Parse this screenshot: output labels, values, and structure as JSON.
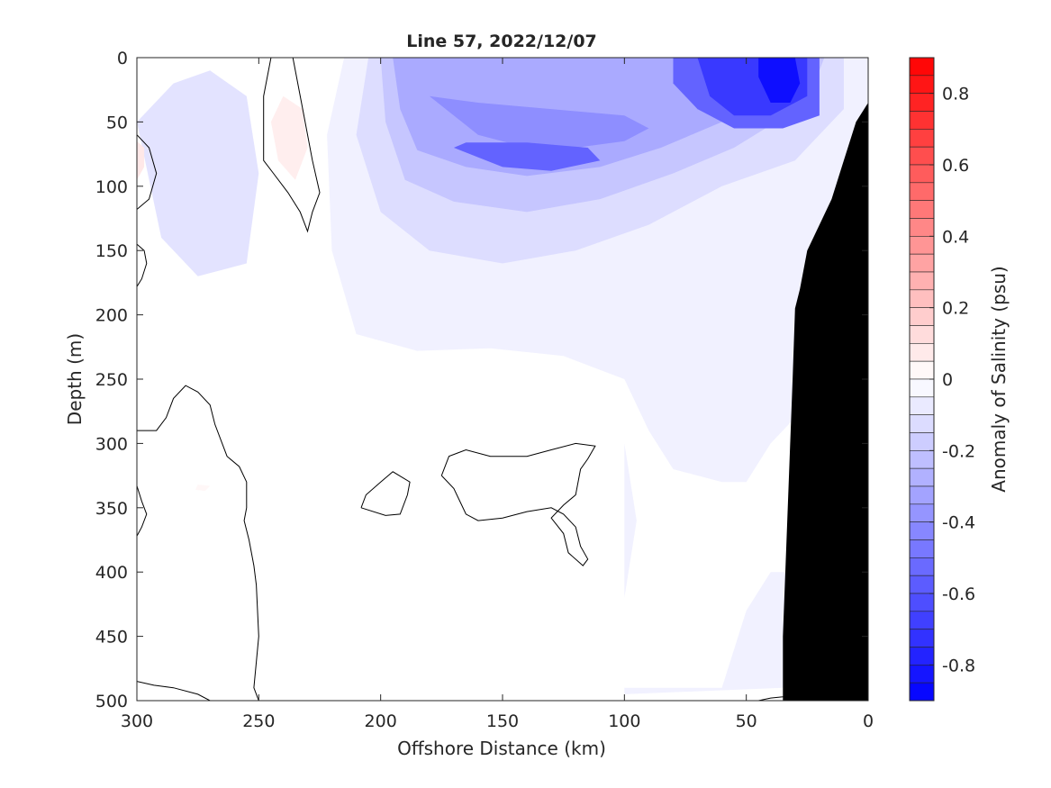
{
  "chart_data": {
    "type": "heatmap",
    "title": "Line 57, 2022/12/07",
    "xlabel": "Offshore Distance (km)",
    "ylabel": "Depth (m)",
    "xlim": [
      300,
      0
    ],
    "ylim": [
      0,
      500
    ],
    "x_ticks": [
      300,
      250,
      200,
      150,
      100,
      50,
      0
    ],
    "x_tick_labels": [
      "300",
      "250",
      "200",
      "150",
      "100",
      "50",
      "0"
    ],
    "y_ticks": [
      0,
      50,
      100,
      150,
      200,
      250,
      300,
      350,
      400,
      450,
      500
    ],
    "y_tick_labels": [
      "0",
      "50",
      "100",
      "150",
      "200",
      "250",
      "300",
      "350",
      "400",
      "450",
      "500"
    ],
    "grid": false,
    "colorbar": {
      "label": "Anomaly of Salinity (psu)",
      "range": [
        -0.9,
        0.9
      ],
      "levels": 36,
      "ticks": [
        0.8,
        0.6,
        0.4,
        0.2,
        0,
        -0.2,
        -0.4,
        -0.6,
        -0.8
      ],
      "tick_labels": [
        "0.8",
        "0.6",
        "0.4",
        "0.2",
        "0",
        "-0.2",
        "-0.4",
        "-0.6",
        "-0.8"
      ],
      "colormap": "blue-white-red",
      "neg_color": "#0000ff",
      "pos_color": "#ff0000",
      "mid_color": "#ffffff"
    },
    "bathymetry_color": "#000000",
    "regions": [
      {
        "name": "r1",
        "value": -0.05,
        "polygon": [
          [
            215,
            0
          ],
          [
            0,
            0
          ],
          [
            0,
            200
          ],
          [
            10,
            240
          ],
          [
            25,
            270
          ],
          [
            40,
            300
          ],
          [
            50,
            330
          ],
          [
            60,
            330
          ],
          [
            80,
            320
          ],
          [
            90,
            290
          ],
          [
            100,
            250
          ],
          [
            125,
            232
          ],
          [
            155,
            226
          ],
          [
            185,
            228
          ],
          [
            210,
            215
          ],
          [
            220,
            150
          ],
          [
            222,
            60
          ]
        ]
      },
      {
        "name": "r2",
        "value": -0.12,
        "polygon": [
          [
            205,
            0
          ],
          [
            10,
            0
          ],
          [
            10,
            40
          ],
          [
            30,
            80
          ],
          [
            60,
            100
          ],
          [
            90,
            130
          ],
          [
            120,
            150
          ],
          [
            150,
            160
          ],
          [
            180,
            150
          ],
          [
            200,
            120
          ],
          [
            210,
            60
          ]
        ]
      },
      {
        "name": "r3",
        "value": -0.2,
        "polygon": [
          [
            200,
            0
          ],
          [
            18,
            0
          ],
          [
            25,
            35
          ],
          [
            55,
            70
          ],
          [
            80,
            90
          ],
          [
            110,
            110
          ],
          [
            140,
            120
          ],
          [
            170,
            112
          ],
          [
            190,
            95
          ],
          [
            198,
            50
          ]
        ]
      },
      {
        "name": "r4",
        "value": -0.3,
        "polygon": [
          [
            195,
            0
          ],
          [
            25,
            0
          ],
          [
            35,
            25
          ],
          [
            60,
            50
          ],
          [
            85,
            70
          ],
          [
            110,
            85
          ],
          [
            140,
            92
          ],
          [
            165,
            85
          ],
          [
            185,
            72
          ],
          [
            192,
            40
          ]
        ]
      },
      {
        "name": "r5",
        "value": -0.4,
        "polygon": [
          [
            180,
            30
          ],
          [
            160,
            60
          ],
          [
            140,
            70
          ],
          [
            120,
            70
          ],
          [
            100,
            65
          ],
          [
            90,
            55
          ],
          [
            100,
            45
          ],
          [
            130,
            40
          ],
          [
            160,
            35
          ]
        ]
      },
      {
        "name": "r6",
        "value": -0.55,
        "polygon": [
          [
            170,
            70
          ],
          [
            150,
            85
          ],
          [
            130,
            88
          ],
          [
            110,
            80
          ],
          [
            115,
            70
          ],
          [
            140,
            66
          ],
          [
            165,
            66
          ]
        ]
      },
      {
        "name": "r7",
        "value": -0.55,
        "polygon": [
          [
            80,
            0
          ],
          [
            20,
            0
          ],
          [
            20,
            45
          ],
          [
            35,
            55
          ],
          [
            55,
            55
          ],
          [
            70,
            40
          ],
          [
            80,
            20
          ]
        ]
      },
      {
        "name": "r8",
        "value": -0.7,
        "polygon": [
          [
            70,
            0
          ],
          [
            25,
            0
          ],
          [
            25,
            30
          ],
          [
            40,
            45
          ],
          [
            55,
            45
          ],
          [
            65,
            30
          ]
        ]
      },
      {
        "name": "r9",
        "value": -0.85,
        "polygon": [
          [
            45,
            0
          ],
          [
            30,
            0
          ],
          [
            28,
            20
          ],
          [
            32,
            35
          ],
          [
            40,
            35
          ],
          [
            45,
            15
          ]
        ]
      },
      {
        "name": "r10",
        "value": -0.1,
        "polygon": [
          [
            300,
            50
          ],
          [
            285,
            20
          ],
          [
            270,
            10
          ],
          [
            255,
            30
          ],
          [
            250,
            90
          ],
          [
            255,
            160
          ],
          [
            275,
            170
          ],
          [
            290,
            140
          ]
        ]
      },
      {
        "name": "r11",
        "value": 0.06,
        "polygon": [
          [
            240,
            30
          ],
          [
            232,
            40
          ],
          [
            230,
            70
          ],
          [
            235,
            95
          ],
          [
            242,
            80
          ],
          [
            245,
            50
          ]
        ]
      },
      {
        "name": "r12",
        "value": 0.08,
        "polygon": [
          [
            300,
            65
          ],
          [
            297,
            70
          ],
          [
            297,
            85
          ],
          [
            300,
            95
          ]
        ]
      },
      {
        "name": "r13",
        "value": 0.03,
        "polygon": [
          [
            275,
            332
          ],
          [
            270,
            333
          ],
          [
            272,
            337
          ],
          [
            276,
            336
          ]
        ]
      },
      {
        "name": "r14",
        "value": -0.05,
        "polygon": [
          [
            100,
            300
          ],
          [
            95,
            360
          ],
          [
            100,
            420
          ],
          [
            100,
            490
          ],
          [
            60,
            490
          ],
          [
            50,
            430
          ],
          [
            40,
            400
          ],
          [
            30,
            400
          ],
          [
            35,
            490
          ],
          [
            100,
            495
          ]
        ]
      }
    ],
    "contours_zero": [
      {
        "name": "c1",
        "points": [
          [
            245,
            0
          ],
          [
            248,
            30
          ],
          [
            248,
            80
          ],
          [
            244,
            90
          ],
          [
            238,
            105
          ],
          [
            233,
            120
          ],
          [
            230,
            135
          ],
          [
            228,
            120
          ],
          [
            225,
            105
          ],
          [
            228,
            80
          ],
          [
            232,
            40
          ],
          [
            236,
            0
          ]
        ]
      },
      {
        "name": "c2",
        "points": [
          [
            300,
            60
          ],
          [
            295,
            70
          ],
          [
            292,
            90
          ],
          [
            295,
            110
          ],
          [
            300,
            118
          ]
        ]
      },
      {
        "name": "c3",
        "points": [
          [
            300,
            145
          ],
          [
            297,
            150
          ],
          [
            296,
            160
          ],
          [
            298,
            172
          ],
          [
            300,
            178
          ]
        ]
      },
      {
        "name": "c4",
        "points": [
          [
            300,
            290
          ],
          [
            292,
            290
          ],
          [
            288,
            280
          ],
          [
            285,
            265
          ],
          [
            280,
            255
          ],
          [
            275,
            260
          ],
          [
            270,
            270
          ],
          [
            268,
            285
          ],
          [
            265,
            300
          ],
          [
            263,
            310
          ],
          [
            258,
            318
          ],
          [
            255,
            330
          ],
          [
            255,
            350
          ],
          [
            256,
            360
          ],
          [
            254,
            375
          ],
          [
            252,
            395
          ],
          [
            251,
            410
          ],
          [
            250,
            450
          ],
          [
            251,
            470
          ],
          [
            252,
            490
          ],
          [
            250,
            500
          ]
        ]
      },
      {
        "name": "c5",
        "points": [
          [
            300,
            333
          ],
          [
            298,
            345
          ],
          [
            296,
            355
          ],
          [
            298,
            365
          ],
          [
            300,
            372
          ]
        ]
      },
      {
        "name": "c6",
        "points": [
          [
            300,
            485
          ],
          [
            293,
            488
          ],
          [
            285,
            490
          ],
          [
            275,
            495
          ],
          [
            270,
            500
          ]
        ]
      },
      {
        "name": "c7",
        "points": [
          [
            208,
            350
          ],
          [
            198,
            356
          ],
          [
            192,
            355
          ],
          [
            189,
            340
          ],
          [
            188,
            330
          ],
          [
            195,
            322
          ],
          [
            200,
            330
          ],
          [
            206,
            340
          ],
          [
            208,
            350
          ]
        ]
      },
      {
        "name": "c8",
        "points": [
          [
            175,
            325
          ],
          [
            170,
            335
          ],
          [
            165,
            355
          ],
          [
            160,
            360
          ],
          [
            150,
            358
          ],
          [
            140,
            353
          ],
          [
            130,
            350
          ],
          [
            125,
            355
          ],
          [
            120,
            365
          ],
          [
            118,
            380
          ],
          [
            115,
            390
          ],
          [
            117,
            395
          ],
          [
            123,
            385
          ],
          [
            125,
            370
          ],
          [
            130,
            358
          ],
          [
            125,
            348
          ],
          [
            120,
            340
          ],
          [
            118,
            320
          ],
          [
            115,
            312
          ],
          [
            112,
            302
          ],
          [
            120,
            300
          ],
          [
            130,
            305
          ],
          [
            140,
            310
          ],
          [
            155,
            310
          ],
          [
            165,
            305
          ],
          [
            172,
            310
          ],
          [
            175,
            325
          ]
        ]
      },
      {
        "name": "c9",
        "points": [
          [
            45,
            500
          ],
          [
            40,
            498
          ],
          [
            35,
            497
          ],
          [
            31,
            496
          ],
          [
            28,
            497
          ]
        ]
      }
    ],
    "bathymetry": [
      [
        0,
        35
      ],
      [
        5,
        50
      ],
      [
        10,
        80
      ],
      [
        15,
        110
      ],
      [
        20,
        130
      ],
      [
        25,
        150
      ],
      [
        28,
        180
      ],
      [
        30,
        195
      ],
      [
        31,
        250
      ],
      [
        32,
        300
      ],
      [
        33,
        350
      ],
      [
        34,
        400
      ],
      [
        35,
        450
      ],
      [
        35,
        500
      ],
      [
        0,
        500
      ]
    ]
  }
}
